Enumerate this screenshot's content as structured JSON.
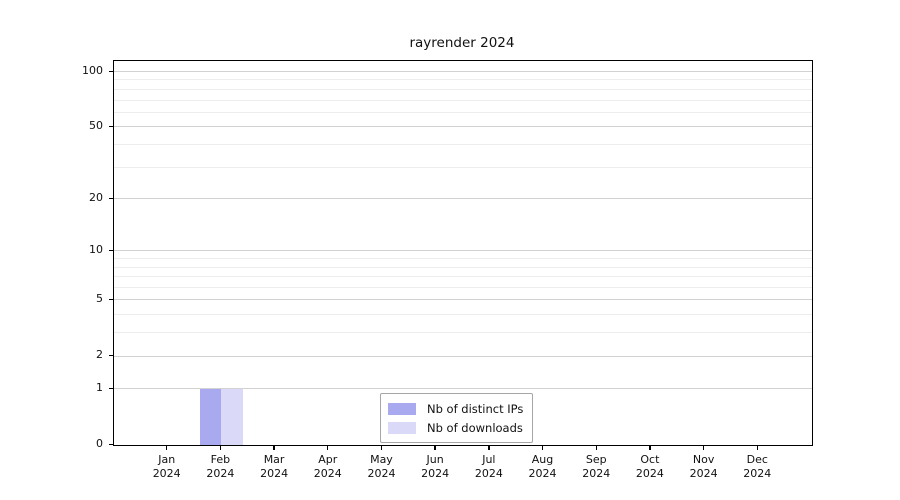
{
  "title": "rayrender 2024",
  "colors": {
    "background": "#ffffff",
    "axis": "#000000",
    "grid_major": "#d2d2d2",
    "grid_minor": "#ededed",
    "legend_border": "#a6a6a6",
    "bar_distinct_ips": "#a9a9f0",
    "bar_downloads": "#dadaf8"
  },
  "legend": {
    "items": [
      {
        "label": "Nb of distinct IPs",
        "swatch": "bar_distinct_ips"
      },
      {
        "label": "Nb of downloads",
        "swatch": "bar_downloads"
      }
    ]
  },
  "chart_data": {
    "type": "bar",
    "title": "rayrender 2024",
    "categories": [
      "Jan 2024",
      "Feb 2024",
      "Mar 2024",
      "Apr 2024",
      "May 2024",
      "Jun 2024",
      "Jul 2024",
      "Aug 2024",
      "Sep 2024",
      "Oct 2024",
      "Nov 2024",
      "Dec 2024"
    ],
    "series": [
      {
        "name": "Nb of distinct IPs",
        "color": "#a9a9f0",
        "values": [
          0,
          1,
          0,
          0,
          0,
          0,
          0,
          0,
          0,
          0,
          0,
          0
        ]
      },
      {
        "name": "Nb of downloads",
        "color": "#dadaf8",
        "values": [
          0,
          1,
          0,
          0,
          0,
          0,
          0,
          0,
          0,
          0,
          0,
          0
        ]
      }
    ],
    "xlabel": "",
    "ylabel": "",
    "y_scale": "log1p",
    "y_ticks": [
      0,
      1,
      2,
      5,
      10,
      20,
      50,
      100
    ],
    "y_minor_ticks": [
      3,
      4,
      6,
      7,
      8,
      9,
      30,
      40,
      60,
      70,
      80,
      90
    ],
    "ylim": [
      0,
      114
    ],
    "grid": true,
    "legend_position": "lower-center"
  }
}
